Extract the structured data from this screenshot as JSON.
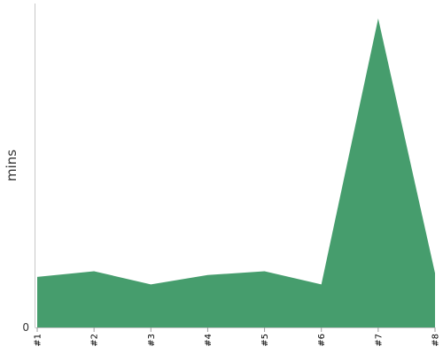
{
  "chart_data": {
    "type": "area",
    "title": "",
    "xlabel": "",
    "ylabel": "mins",
    "categories": [
      "#1",
      "#2",
      "#3",
      "#4",
      "#5",
      "#6",
      "#7",
      "#8"
    ],
    "series": [
      {
        "values": [
          27,
          30,
          23,
          28,
          30,
          23,
          165,
          29
        ]
      }
    ],
    "yticks": [
      0
    ],
    "ylim": [
      0,
      172
    ],
    "grid": false,
    "legend": "none",
    "colors": {
      "fill": "#469d6d",
      "axis": "#c8c8c8",
      "text": "#333333"
    }
  }
}
